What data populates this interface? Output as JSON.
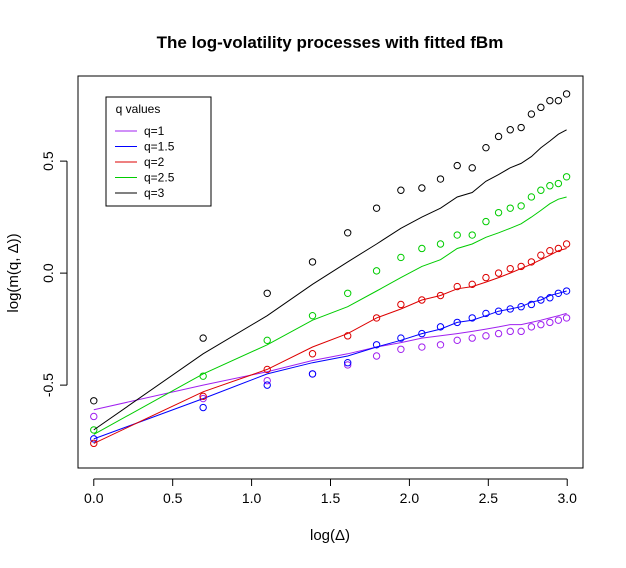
{
  "chart_data": {
    "type": "scatter",
    "title": "The log-volatility processes with fitted fBm",
    "xlabel": "log(Δ)",
    "ylabel": "log(m(q, Δ))",
    "xlim": [
      -0.1,
      3.1
    ],
    "ylim": [
      -0.87,
      0.88
    ],
    "x_ticks": [
      0.0,
      0.5,
      1.0,
      1.5,
      2.0,
      2.5,
      3.0
    ],
    "x_tick_labels": [
      "0.0",
      "0.5",
      "1.0",
      "1.5",
      "2.0",
      "2.5",
      "3.0"
    ],
    "y_ticks": [
      -0.5,
      0.0,
      0.5
    ],
    "y_tick_labels": [
      "-0.5",
      "0.0",
      "0.5"
    ],
    "grid": false,
    "legend": {
      "title": "q values",
      "placement": "top-left"
    },
    "x": [
      0.0,
      0.693,
      1.099,
      1.386,
      1.609,
      1.792,
      1.946,
      2.079,
      2.197,
      2.303,
      2.398,
      2.485,
      2.565,
      2.639,
      2.708,
      2.773,
      2.833,
      2.89,
      2.944,
      2.996
    ],
    "series": [
      {
        "name": "q=1",
        "color": "#a020f0",
        "points": [
          -0.64,
          -0.56,
          -0.48,
          -0.45,
          -0.41,
          -0.37,
          -0.34,
          -0.33,
          -0.32,
          -0.3,
          -0.29,
          -0.28,
          -0.27,
          -0.26,
          -0.26,
          -0.24,
          -0.23,
          -0.22,
          -0.21,
          -0.2
        ],
        "fit": [
          -0.61,
          -0.5,
          -0.44,
          -0.39,
          -0.36,
          -0.33,
          -0.31,
          -0.29,
          -0.28,
          -0.27,
          -0.26,
          -0.25,
          -0.24,
          -0.23,
          -0.23,
          -0.22,
          -0.21,
          -0.2,
          -0.19,
          -0.18
        ]
      },
      {
        "name": "q=1.5",
        "color": "#0000ff",
        "points": [
          -0.74,
          -0.6,
          -0.5,
          -0.45,
          -0.4,
          -0.32,
          -0.29,
          -0.27,
          -0.24,
          -0.22,
          -0.2,
          -0.18,
          -0.17,
          -0.16,
          -0.15,
          -0.14,
          -0.12,
          -0.11,
          -0.09,
          -0.08
        ],
        "fit": [
          -0.74,
          -0.56,
          -0.45,
          -0.4,
          -0.37,
          -0.33,
          -0.3,
          -0.27,
          -0.25,
          -0.22,
          -0.21,
          -0.19,
          -0.17,
          -0.16,
          -0.15,
          -0.13,
          -0.12,
          -0.1,
          -0.09,
          -0.08
        ]
      },
      {
        "name": "q=2",
        "color": "#dd0000",
        "points": [
          -0.76,
          -0.55,
          -0.43,
          -0.36,
          -0.28,
          -0.2,
          -0.14,
          -0.12,
          -0.1,
          -0.06,
          -0.05,
          -0.02,
          0.0,
          0.02,
          0.03,
          0.05,
          0.08,
          0.1,
          0.11,
          0.13
        ],
        "fit": [
          -0.76,
          -0.53,
          -0.43,
          -0.33,
          -0.27,
          -0.2,
          -0.16,
          -0.12,
          -0.1,
          -0.07,
          -0.06,
          -0.04,
          -0.02,
          0.0,
          0.02,
          0.04,
          0.06,
          0.08,
          0.1,
          0.11
        ]
      },
      {
        "name": "q=2.5",
        "color": "#00cc00",
        "points": [
          -0.7,
          -0.46,
          -0.3,
          -0.19,
          -0.09,
          0.01,
          0.07,
          0.11,
          0.13,
          0.17,
          0.17,
          0.23,
          0.27,
          0.29,
          0.3,
          0.34,
          0.37,
          0.39,
          0.4,
          0.43
        ],
        "fit": [
          -0.72,
          -0.45,
          -0.32,
          -0.21,
          -0.15,
          -0.08,
          -0.02,
          0.03,
          0.06,
          0.11,
          0.13,
          0.16,
          0.18,
          0.2,
          0.22,
          0.25,
          0.28,
          0.31,
          0.33,
          0.34
        ]
      },
      {
        "name": "q=3",
        "color": "#000000",
        "points": [
          -0.57,
          -0.29,
          -0.09,
          0.05,
          0.18,
          0.29,
          0.37,
          0.38,
          0.42,
          0.48,
          0.47,
          0.56,
          0.61,
          0.64,
          0.65,
          0.71,
          0.74,
          0.77,
          0.77,
          0.8
        ],
        "fit": [
          -0.7,
          -0.36,
          -0.19,
          -0.05,
          0.05,
          0.13,
          0.2,
          0.25,
          0.29,
          0.34,
          0.36,
          0.41,
          0.44,
          0.47,
          0.49,
          0.52,
          0.56,
          0.59,
          0.62,
          0.64
        ]
      }
    ]
  }
}
